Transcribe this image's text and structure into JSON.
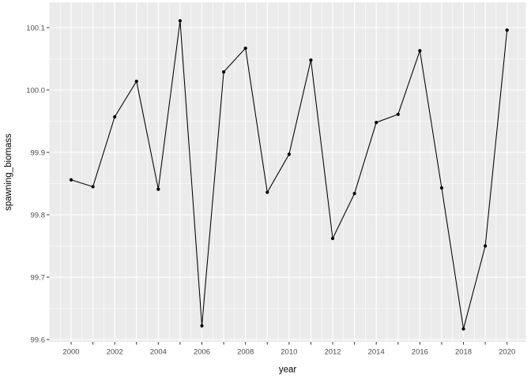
{
  "chart_data": {
    "type": "line",
    "title": "",
    "xlabel": "year",
    "ylabel": "spawning_biomass",
    "marker": "point",
    "legend_position": "none",
    "grid": true,
    "x": [
      2000,
      2001,
      2002,
      2003,
      2004,
      2005,
      2006,
      2007,
      2008,
      2009,
      2010,
      2011,
      2012,
      2013,
      2014,
      2015,
      2016,
      2017,
      2018,
      2019,
      2020
    ],
    "values": [
      99.856,
      99.845,
      99.957,
      100.014,
      99.841,
      100.111,
      99.622,
      100.029,
      100.067,
      99.836,
      99.897,
      100.048,
      99.762,
      99.834,
      99.948,
      99.961,
      100.063,
      99.843,
      99.617,
      99.75,
      100.096
    ],
    "xlim": [
      1999.0,
      2020.9
    ],
    "ylim": [
      99.596,
      100.14
    ],
    "x_tick_years": [
      2000,
      2001,
      2002,
      2003,
      2004,
      2005,
      2006,
      2007,
      2008,
      2009,
      2010,
      2011,
      2012,
      2013,
      2014,
      2015,
      2016,
      2017,
      2018,
      2019,
      2020
    ],
    "x_labeled_years": [
      2000,
      2002,
      2004,
      2006,
      2008,
      2010,
      2012,
      2014,
      2016,
      2018,
      2020
    ],
    "x_tick_labels": [
      "2000",
      "2002",
      "2004",
      "2006",
      "2008",
      "2010",
      "2012",
      "2014",
      "2016",
      "2018",
      "2020"
    ],
    "x_minor_breaks": [
      1999.5,
      2000.5,
      2001.5,
      2002.5,
      2003.5,
      2004.5,
      2005.5,
      2006.5,
      2007.5,
      2008.5,
      2009.5,
      2010.5,
      2011.5,
      2012.5,
      2013.5,
      2014.5,
      2015.5,
      2016.5,
      2017.5,
      2018.5,
      2019.5,
      2020.5
    ],
    "y_ticks": [
      99.6,
      99.7,
      99.8,
      99.9,
      100.0,
      100.1
    ],
    "y_tick_labels": [
      "99.6",
      "99.7",
      "99.8",
      "99.9",
      "100.0",
      "100.1"
    ],
    "y_minor_breaks": [
      99.65,
      99.75,
      99.85,
      99.95,
      100.05
    ],
    "style": {
      "background": "#FFFFFF",
      "panel_bg": "#EBEBEB",
      "grid_major_color": "#FFFFFF",
      "grid_minor_color": "#FFFFFF",
      "line_color": "#000000",
      "point_color": "#000000",
      "axis_text_color": "#4D4D4D",
      "axis_title_color": "#000000",
      "tick_mark_color": "#333333"
    }
  }
}
